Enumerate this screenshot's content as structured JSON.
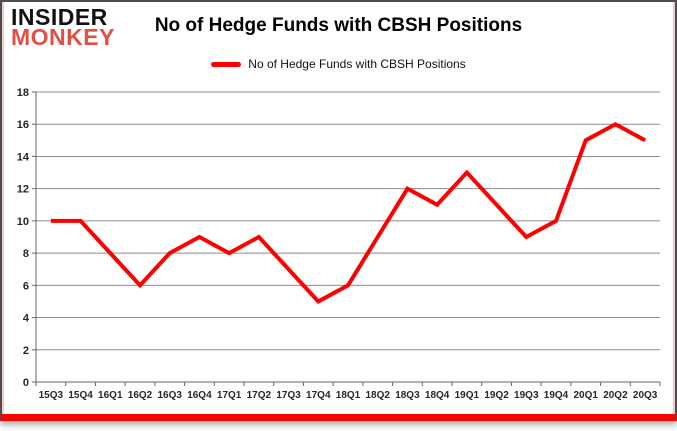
{
  "logo": {
    "line1": "INSIDER",
    "line2": "MONKEY"
  },
  "header": {
    "title": "No of Hedge Funds with CBSH Positions"
  },
  "legend": {
    "label": "No of Hedge Funds with CBSH Positions"
  },
  "colors": {
    "line_red": "#fe0000",
    "logo_red": "#e25045",
    "card_border": "#4d4d4d",
    "gridline": "#8c8c8c",
    "axis": "#666666",
    "axis_text": "#262626"
  },
  "chart_data": {
    "type": "line",
    "title": "No of Hedge Funds with CBSH Positions",
    "categories": [
      "15Q3",
      "15Q4",
      "16Q1",
      "16Q2",
      "16Q3",
      "16Q4",
      "17Q1",
      "17Q2",
      "17Q3",
      "17Q4",
      "18Q1",
      "18Q2",
      "18Q3",
      "18Q4",
      "19Q1",
      "19Q2",
      "19Q3",
      "19Q4",
      "20Q1",
      "20Q2",
      "20Q3"
    ],
    "series": [
      {
        "name": "No of Hedge Funds with CBSH Positions",
        "values": [
          10,
          10,
          8,
          6,
          8,
          9,
          8,
          9,
          7,
          5,
          6,
          9,
          12,
          11,
          13,
          11,
          9,
          10,
          15,
          16,
          15
        ]
      }
    ],
    "xlabel": "",
    "ylabel": "",
    "ylim": [
      0,
      18
    ],
    "ytick_step": 2,
    "grid": true,
    "legend_position": "top"
  }
}
